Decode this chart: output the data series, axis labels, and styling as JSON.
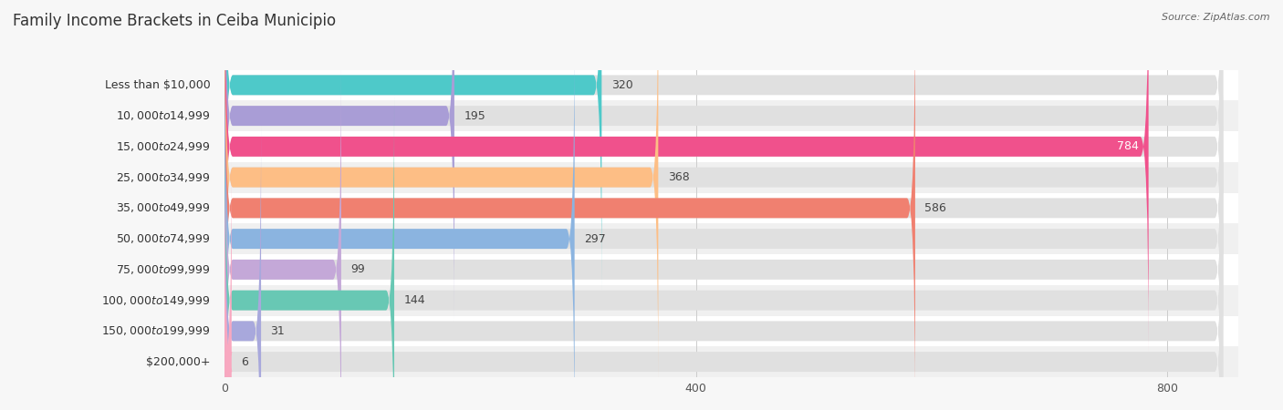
{
  "title": "Family Income Brackets in Ceiba Municipio",
  "source": "Source: ZipAtlas.com",
  "categories": [
    "Less than $10,000",
    "$10,000 to $14,999",
    "$15,000 to $24,999",
    "$25,000 to $34,999",
    "$35,000 to $49,999",
    "$50,000 to $74,999",
    "$75,000 to $99,999",
    "$100,000 to $149,999",
    "$150,000 to $199,999",
    "$200,000+"
  ],
  "values": [
    320,
    195,
    784,
    368,
    586,
    297,
    99,
    144,
    31,
    6
  ],
  "bar_colors": [
    "#4EC9C9",
    "#A99DD6",
    "#F0518C",
    "#FDBE85",
    "#F08070",
    "#8BB4E0",
    "#C4A8D8",
    "#68C8B4",
    "#A8A8DC",
    "#F8A8C0"
  ],
  "background_color": "#f7f7f7",
  "row_bg_even": "#ffffff",
  "row_bg_odd": "#f0f0f0",
  "bar_bg_color": "#e0e0e0",
  "xlim_max": 860,
  "xticks": [
    0,
    400,
    800
  ],
  "title_fontsize": 12,
  "label_fontsize": 9,
  "value_fontsize": 9,
  "bar_height": 0.65,
  "title_color": "#333333",
  "source_color": "#666666",
  "label_color": "#333333",
  "value_color_dark": "#444444",
  "value_color_light": "#ffffff"
}
